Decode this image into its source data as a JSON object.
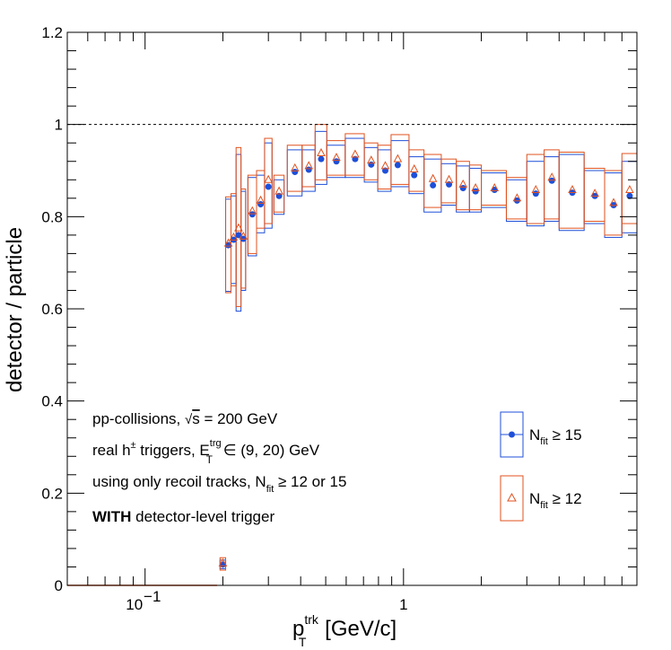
{
  "chart_data": {
    "type": "scatter",
    "xscale": "log",
    "xlim": [
      0.05,
      8.0
    ],
    "ylim": [
      0,
      1.2
    ],
    "xlabel": {
      "main": "p",
      "sup": "trk",
      "sub": "T",
      "units": " [GeV/c]"
    },
    "ylabel": "detector / particle",
    "yticks": [
      "0",
      "0.2",
      "0.4",
      "0.6",
      "0.8",
      "1",
      "1.2"
    ],
    "xticks": [
      {
        "value": 0.1,
        "base": "10",
        "exp": "−1"
      },
      {
        "value": 1,
        "text": "1"
      }
    ],
    "reference_line": {
      "y": 1.0,
      "style": "dashed"
    },
    "annotations": [
      {
        "id": "line1",
        "parts": [
          "pp-collisions, ",
          "√",
          "s",
          " = 200 GeV"
        ]
      },
      {
        "id": "line2",
        "parts": [
          "real h",
          "±",
          " triggers, E",
          "trg",
          "T",
          " ∈ (9, 20) GeV"
        ]
      },
      {
        "id": "line3",
        "parts": [
          "using only recoil tracks, N",
          "fit",
          " ≥ 12 or 15"
        ]
      },
      {
        "id": "line4",
        "parts": [
          "WITH",
          " detector-level trigger"
        ]
      }
    ],
    "legend": {
      "placement": "bottom-right",
      "entries": [
        {
          "name_main": "N",
          "name_sub": "fit",
          "name_rest": " ≥ 15",
          "color": "#1f4fd8",
          "marker": "filled-circle"
        },
        {
          "name_main": "N",
          "name_sub": "fit",
          "name_rest": " ≥ 12",
          "color": "#e0521f",
          "marker": "open-triangle"
        }
      ]
    },
    "baseline": {
      "x_from": 0.05,
      "x_to": 0.19,
      "y": 0,
      "color": "#e0521f"
    },
    "series": [
      {
        "name": "Nfit ≥ 15",
        "color": "#1f4fd8",
        "marker": "filled-circle",
        "points": [
          {
            "x": 0.2,
            "xlo": 0.195,
            "xhi": 0.205,
            "y": 0.045,
            "ylo": 0.036,
            "yhi": 0.055
          },
          {
            "x": 0.21,
            "xlo": 0.205,
            "xhi": 0.215,
            "y": 0.738,
            "ylo": 0.638,
            "yhi": 0.838
          },
          {
            "x": 0.22,
            "xlo": 0.215,
            "xhi": 0.225,
            "y": 0.75,
            "ylo": 0.655,
            "yhi": 0.845
          },
          {
            "x": 0.23,
            "xlo": 0.225,
            "xhi": 0.235,
            "y": 0.76,
            "ylo": 0.595,
            "yhi": 0.935
          },
          {
            "x": 0.24,
            "xlo": 0.235,
            "xhi": 0.245,
            "y": 0.752,
            "ylo": 0.64,
            "yhi": 0.855
          },
          {
            "x": 0.26,
            "xlo": 0.25,
            "xhi": 0.27,
            "y": 0.805,
            "ylo": 0.715,
            "yhi": 0.885
          },
          {
            "x": 0.28,
            "xlo": 0.27,
            "xhi": 0.29,
            "y": 0.827,
            "ylo": 0.765,
            "yhi": 0.89
          },
          {
            "x": 0.3,
            "xlo": 0.29,
            "xhi": 0.31,
            "y": 0.865,
            "ylo": 0.775,
            "yhi": 0.96
          },
          {
            "x": 0.33,
            "xlo": 0.315,
            "xhi": 0.345,
            "y": 0.845,
            "ylo": 0.805,
            "yhi": 0.88
          },
          {
            "x": 0.38,
            "xlo": 0.355,
            "xhi": 0.405,
            "y": 0.897,
            "ylo": 0.845,
            "yhi": 0.945
          },
          {
            "x": 0.43,
            "xlo": 0.405,
            "xhi": 0.455,
            "y": 0.902,
            "ylo": 0.855,
            "yhi": 0.945
          },
          {
            "x": 0.48,
            "xlo": 0.455,
            "xhi": 0.505,
            "y": 0.925,
            "ylo": 0.87,
            "yhi": 0.985
          },
          {
            "x": 0.55,
            "xlo": 0.505,
            "xhi": 0.595,
            "y": 0.92,
            "ylo": 0.885,
            "yhi": 0.955
          },
          {
            "x": 0.65,
            "xlo": 0.595,
            "xhi": 0.705,
            "y": 0.925,
            "ylo": 0.885,
            "yhi": 0.97
          },
          {
            "x": 0.75,
            "xlo": 0.705,
            "xhi": 0.795,
            "y": 0.913,
            "ylo": 0.875,
            "yhi": 0.95
          },
          {
            "x": 0.85,
            "xlo": 0.795,
            "xhi": 0.895,
            "y": 0.9,
            "ylo": 0.855,
            "yhi": 0.945
          },
          {
            "x": 0.95,
            "xlo": 0.895,
            "xhi": 1.05,
            "y": 0.912,
            "ylo": 0.865,
            "yhi": 0.965
          },
          {
            "x": 1.1,
            "xlo": 1.05,
            "xhi": 1.2,
            "y": 0.89,
            "ylo": 0.85,
            "yhi": 0.93
          },
          {
            "x": 1.3,
            "xlo": 1.2,
            "xhi": 1.4,
            "y": 0.868,
            "ylo": 0.81,
            "yhi": 0.925
          },
          {
            "x": 1.5,
            "xlo": 1.4,
            "xhi": 1.6,
            "y": 0.87,
            "ylo": 0.825,
            "yhi": 0.915
          },
          {
            "x": 1.7,
            "xlo": 1.6,
            "xhi": 1.8,
            "y": 0.862,
            "ylo": 0.81,
            "yhi": 0.91
          },
          {
            "x": 1.9,
            "xlo": 1.8,
            "xhi": 2.0,
            "y": 0.855,
            "ylo": 0.81,
            "yhi": 0.905
          },
          {
            "x": 2.25,
            "xlo": 2.0,
            "xhi": 2.5,
            "y": 0.858,
            "ylo": 0.82,
            "yhi": 0.895
          },
          {
            "x": 2.75,
            "xlo": 2.5,
            "xhi": 3.0,
            "y": 0.835,
            "ylo": 0.79,
            "yhi": 0.88
          },
          {
            "x": 3.25,
            "xlo": 3.0,
            "xhi": 3.5,
            "y": 0.85,
            "ylo": 0.78,
            "yhi": 0.92
          },
          {
            "x": 3.75,
            "xlo": 3.5,
            "xhi": 4.0,
            "y": 0.878,
            "ylo": 0.79,
            "yhi": 0.93
          },
          {
            "x": 4.5,
            "xlo": 4.0,
            "xhi": 5.0,
            "y": 0.852,
            "ylo": 0.77,
            "yhi": 0.935
          },
          {
            "x": 5.5,
            "xlo": 5.0,
            "xhi": 6.0,
            "y": 0.845,
            "ylo": 0.785,
            "yhi": 0.9
          },
          {
            "x": 6.5,
            "xlo": 6.0,
            "xhi": 7.0,
            "y": 0.825,
            "ylo": 0.755,
            "yhi": 0.895
          },
          {
            "x": 7.5,
            "xlo": 7.0,
            "xhi": 8.0,
            "y": 0.845,
            "ylo": 0.765,
            "yhi": 0.92
          }
        ]
      },
      {
        "name": "Nfit ≥ 12",
        "color": "#e0521f",
        "marker": "open-triangle",
        "points": [
          {
            "x": 0.2,
            "xlo": 0.195,
            "xhi": 0.205,
            "y": 0.048,
            "ylo": 0.033,
            "yhi": 0.06
          },
          {
            "x": 0.21,
            "xlo": 0.205,
            "xhi": 0.215,
            "y": 0.742,
            "ylo": 0.635,
            "yhi": 0.843
          },
          {
            "x": 0.22,
            "xlo": 0.215,
            "xhi": 0.225,
            "y": 0.755,
            "ylo": 0.65,
            "yhi": 0.85
          },
          {
            "x": 0.23,
            "xlo": 0.225,
            "xhi": 0.235,
            "y": 0.775,
            "ylo": 0.605,
            "yhi": 0.95
          },
          {
            "x": 0.24,
            "xlo": 0.235,
            "xhi": 0.245,
            "y": 0.757,
            "ylo": 0.645,
            "yhi": 0.86
          },
          {
            "x": 0.26,
            "xlo": 0.25,
            "xhi": 0.27,
            "y": 0.812,
            "ylo": 0.72,
            "yhi": 0.89
          },
          {
            "x": 0.28,
            "xlo": 0.27,
            "xhi": 0.29,
            "y": 0.835,
            "ylo": 0.775,
            "yhi": 0.9
          },
          {
            "x": 0.3,
            "xlo": 0.29,
            "xhi": 0.31,
            "y": 0.88,
            "ylo": 0.785,
            "yhi": 0.97
          },
          {
            "x": 0.33,
            "xlo": 0.315,
            "xhi": 0.345,
            "y": 0.855,
            "ylo": 0.81,
            "yhi": 0.89
          },
          {
            "x": 0.38,
            "xlo": 0.355,
            "xhi": 0.405,
            "y": 0.905,
            "ylo": 0.855,
            "yhi": 0.955
          },
          {
            "x": 0.43,
            "xlo": 0.405,
            "xhi": 0.455,
            "y": 0.91,
            "ylo": 0.865,
            "yhi": 0.955
          },
          {
            "x": 0.48,
            "xlo": 0.455,
            "xhi": 0.505,
            "y": 0.938,
            "ylo": 0.88,
            "yhi": 1.0
          },
          {
            "x": 0.55,
            "xlo": 0.505,
            "xhi": 0.595,
            "y": 0.928,
            "ylo": 0.89,
            "yhi": 0.965
          },
          {
            "x": 0.65,
            "xlo": 0.595,
            "xhi": 0.705,
            "y": 0.935,
            "ylo": 0.89,
            "yhi": 0.98
          },
          {
            "x": 0.75,
            "xlo": 0.705,
            "xhi": 0.795,
            "y": 0.922,
            "ylo": 0.88,
            "yhi": 0.96
          },
          {
            "x": 0.85,
            "xlo": 0.795,
            "xhi": 0.895,
            "y": 0.91,
            "ylo": 0.86,
            "yhi": 0.955
          },
          {
            "x": 0.95,
            "xlo": 0.895,
            "xhi": 1.05,
            "y": 0.925,
            "ylo": 0.87,
            "yhi": 0.978
          },
          {
            "x": 1.1,
            "xlo": 1.05,
            "xhi": 1.2,
            "y": 0.903,
            "ylo": 0.855,
            "yhi": 0.945
          },
          {
            "x": 1.3,
            "xlo": 1.2,
            "xhi": 1.4,
            "y": 0.882,
            "ylo": 0.82,
            "yhi": 0.935
          },
          {
            "x": 1.5,
            "xlo": 1.4,
            "xhi": 1.6,
            "y": 0.88,
            "ylo": 0.83,
            "yhi": 0.925
          },
          {
            "x": 1.7,
            "xlo": 1.6,
            "xhi": 1.8,
            "y": 0.87,
            "ylo": 0.815,
            "yhi": 0.92
          },
          {
            "x": 1.9,
            "xlo": 1.8,
            "xhi": 2.0,
            "y": 0.862,
            "ylo": 0.815,
            "yhi": 0.912
          },
          {
            "x": 2.25,
            "xlo": 2.0,
            "xhi": 2.5,
            "y": 0.862,
            "ylo": 0.825,
            "yhi": 0.9
          },
          {
            "x": 2.75,
            "xlo": 2.5,
            "xhi": 3.0,
            "y": 0.84,
            "ylo": 0.795,
            "yhi": 0.885
          },
          {
            "x": 3.25,
            "xlo": 3.0,
            "xhi": 3.5,
            "y": 0.858,
            "ylo": 0.785,
            "yhi": 0.935
          },
          {
            "x": 3.75,
            "xlo": 3.5,
            "xhi": 4.0,
            "y": 0.885,
            "ylo": 0.795,
            "yhi": 0.945
          },
          {
            "x": 4.5,
            "xlo": 4.0,
            "xhi": 5.0,
            "y": 0.858,
            "ylo": 0.775,
            "yhi": 0.94
          },
          {
            "x": 5.5,
            "xlo": 5.0,
            "xhi": 6.0,
            "y": 0.85,
            "ylo": 0.79,
            "yhi": 0.905
          },
          {
            "x": 6.5,
            "xlo": 6.0,
            "xhi": 7.0,
            "y": 0.83,
            "ylo": 0.76,
            "yhi": 0.9
          },
          {
            "x": 7.5,
            "xlo": 7.0,
            "xhi": 8.0,
            "y": 0.858,
            "ylo": 0.785,
            "yhi": 0.937
          }
        ]
      }
    ]
  }
}
